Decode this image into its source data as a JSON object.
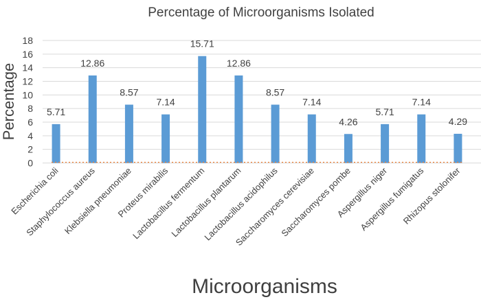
{
  "chart_data": {
    "type": "bar",
    "title": "Percentage of Microorganisms Isolated",
    "xlabel": "Microorganisms",
    "ylabel": "Percentage",
    "ylim": [
      0,
      18
    ],
    "yticks": [
      0,
      2,
      4,
      6,
      8,
      10,
      12,
      14,
      16,
      18
    ],
    "grid": true,
    "categories": [
      "Escherichia coli",
      "Staphylococcus aureus",
      "Klebsiella pneumoniae",
      "Proteus mirabilis",
      "Lactobacillus fermentum",
      "Lactobacillus plantarum",
      "Lactobacillus acidophilus",
      "Saccharomyces cerevisiae",
      "Saccharomyces pombe",
      "Aspergillus niger",
      "Aspergillus fumigatus",
      "Rhizopus stolonifer"
    ],
    "values": [
      5.71,
      12.86,
      8.57,
      7.14,
      15.71,
      12.86,
      8.57,
      7.14,
      4.26,
      5.71,
      7.14,
      4.29
    ],
    "data_labels": [
      "5.71",
      "12.86",
      "8.57",
      "7.14",
      "15.71",
      "12.86",
      "8.57",
      "7.14",
      "4.26",
      "5.71",
      "7.14",
      "4.29"
    ],
    "bar_color": "#5b9bd5",
    "baseline_series_color": "#ed7d31",
    "grid_color": "#d9d9d9"
  }
}
